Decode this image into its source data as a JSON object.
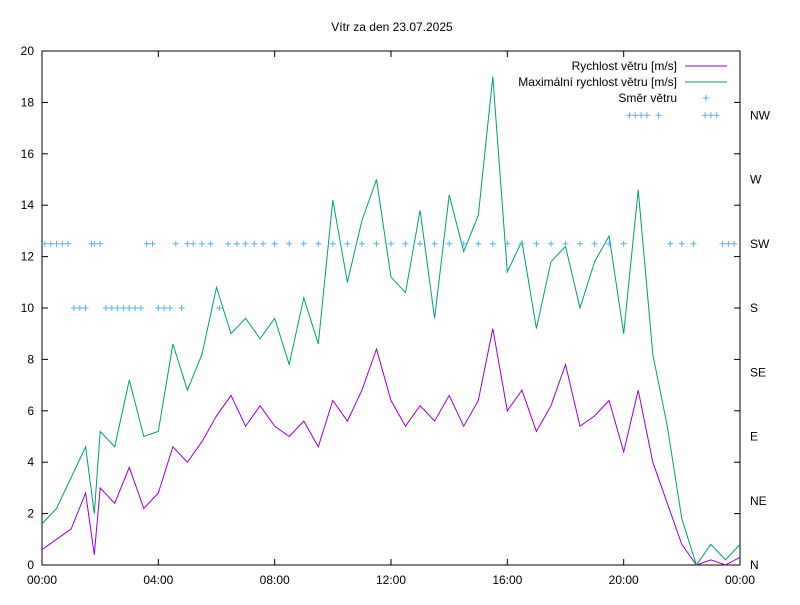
{
  "chart_data": {
    "type": "line",
    "title": "Vítr za den 23.07.2025",
    "x_ticks": [
      "00:00",
      "04:00",
      "08:00",
      "12:00",
      "16:00",
      "20:00",
      "00:00"
    ],
    "x_range_hours": [
      0,
      24
    ],
    "y_ticks": [
      "0",
      "2",
      "4",
      "6",
      "8",
      "10",
      "12",
      "14",
      "16",
      "18",
      "20"
    ],
    "ylim": [
      0,
      20
    ],
    "y2_ticks": [
      "N",
      "NE",
      "E",
      "SE",
      "S",
      "SW",
      "W",
      "NW"
    ],
    "legend_position": "top-right",
    "grid": false,
    "series": [
      {
        "name": "Rychlost větru [m/s]",
        "color": "#9400d3",
        "style": "line",
        "x_hours": [
          0,
          0.5,
          1,
          1.5,
          1.8,
          2,
          2.5,
          3,
          3.5,
          4,
          4.5,
          5,
          5.5,
          6,
          6.5,
          7,
          7.5,
          8,
          8.5,
          9,
          9.5,
          10,
          10.5,
          11,
          11.5,
          12,
          12.5,
          13,
          13.5,
          14,
          14.5,
          15,
          15.5,
          16,
          16.5,
          17,
          17.5,
          18,
          18.5,
          19,
          19.5,
          20,
          20.5,
          21,
          21.5,
          22,
          22.5,
          23,
          23.5,
          24
        ],
        "values": [
          0.6,
          1.0,
          1.4,
          2.8,
          0.4,
          3.0,
          2.4,
          3.8,
          2.2,
          2.8,
          4.6,
          4.0,
          4.8,
          5.8,
          6.6,
          5.4,
          6.2,
          5.4,
          5.0,
          5.6,
          4.6,
          6.4,
          5.6,
          6.8,
          8.4,
          6.4,
          5.4,
          6.2,
          5.6,
          6.6,
          5.4,
          6.4,
          9.2,
          6.0,
          6.8,
          5.2,
          6.2,
          7.8,
          5.4,
          5.8,
          6.4,
          4.4,
          6.8,
          4.0,
          2.4,
          0.8,
          0.0,
          0.2,
          0.0,
          0.3
        ]
      },
      {
        "name": "Maximální rychlost větru [m/s]",
        "color": "#009e73",
        "style": "line",
        "x_hours": [
          0,
          0.5,
          1,
          1.5,
          1.8,
          2,
          2.5,
          3,
          3.5,
          4,
          4.5,
          5,
          5.5,
          6,
          6.5,
          7,
          7.5,
          8,
          8.5,
          9,
          9.5,
          10,
          10.5,
          11,
          11.5,
          12,
          12.5,
          13,
          13.5,
          14,
          14.5,
          15,
          15.5,
          16,
          16.5,
          17,
          17.5,
          18,
          18.5,
          19,
          19.5,
          20,
          20.5,
          21,
          21.5,
          22,
          22.5,
          23,
          23.5,
          24
        ],
        "values": [
          1.6,
          2.2,
          3.4,
          4.6,
          2.0,
          5.2,
          4.6,
          7.2,
          5.0,
          5.2,
          8.6,
          6.8,
          8.2,
          10.8,
          9.0,
          9.6,
          8.8,
          9.6,
          7.8,
          10.4,
          8.6,
          14.2,
          11.0,
          13.4,
          15.0,
          11.2,
          10.6,
          13.8,
          9.6,
          14.4,
          12.2,
          13.6,
          19.0,
          11.4,
          12.6,
          9.2,
          11.8,
          12.4,
          10.0,
          11.8,
          12.8,
          9.0,
          14.6,
          8.2,
          5.4,
          1.8,
          0.0,
          0.8,
          0.2,
          0.8
        ]
      },
      {
        "name": "Směr větru",
        "color": "#56b4e9",
        "style": "points",
        "x_hours": [
          0.1,
          0.3,
          0.5,
          0.7,
          0.9,
          1.1,
          1.3,
          1.5,
          1.7,
          1.8,
          2.0,
          2.2,
          2.4,
          2.6,
          2.8,
          3.0,
          3.2,
          3.4,
          3.6,
          3.8,
          4.0,
          4.2,
          4.4,
          4.6,
          4.8,
          5.0,
          5.2,
          5.5,
          5.8,
          6.1,
          6.4,
          6.7,
          7.0,
          7.3,
          7.6,
          8.0,
          8.5,
          9.0,
          9.5,
          10.0,
          10.5,
          11.0,
          11.5,
          12.0,
          12.5,
          13.0,
          13.5,
          14.0,
          14.5,
          15.0,
          15.5,
          16.0,
          16.5,
          17.0,
          17.5,
          18.0,
          18.5,
          19.0,
          19.5,
          20.0,
          20.2,
          20.4,
          20.6,
          20.8,
          21.2,
          21.6,
          22.0,
          22.4,
          22.8,
          23.0,
          23.2,
          23.4,
          23.6,
          23.8
        ],
        "values": [
          "SW",
          "SW",
          "SW",
          "SW",
          "SW",
          "S",
          "S",
          "S",
          "SW",
          "SW",
          "SW",
          "S",
          "S",
          "S",
          "S",
          "S",
          "S",
          "S",
          "SW",
          "SW",
          "S",
          "S",
          "S",
          "SW",
          "S",
          "SW",
          "SW",
          "SW",
          "SW",
          "S",
          "SW",
          "SW",
          "SW",
          "SW",
          "SW",
          "SW",
          "SW",
          "SW",
          "SW",
          "SW",
          "SW",
          "SW",
          "SW",
          "SW",
          "SW",
          "SW",
          "SW",
          "SW",
          "SW",
          "SW",
          "SW",
          "SW",
          "SW",
          "SW",
          "SW",
          "SW",
          "SW",
          "SW",
          "SW",
          "SW",
          "NW",
          "NW",
          "NW",
          "NW",
          "NW",
          "SW",
          "SW",
          "SW",
          "NW",
          "NW",
          "NW",
          "SW",
          "SW",
          "SW"
        ]
      }
    ]
  }
}
